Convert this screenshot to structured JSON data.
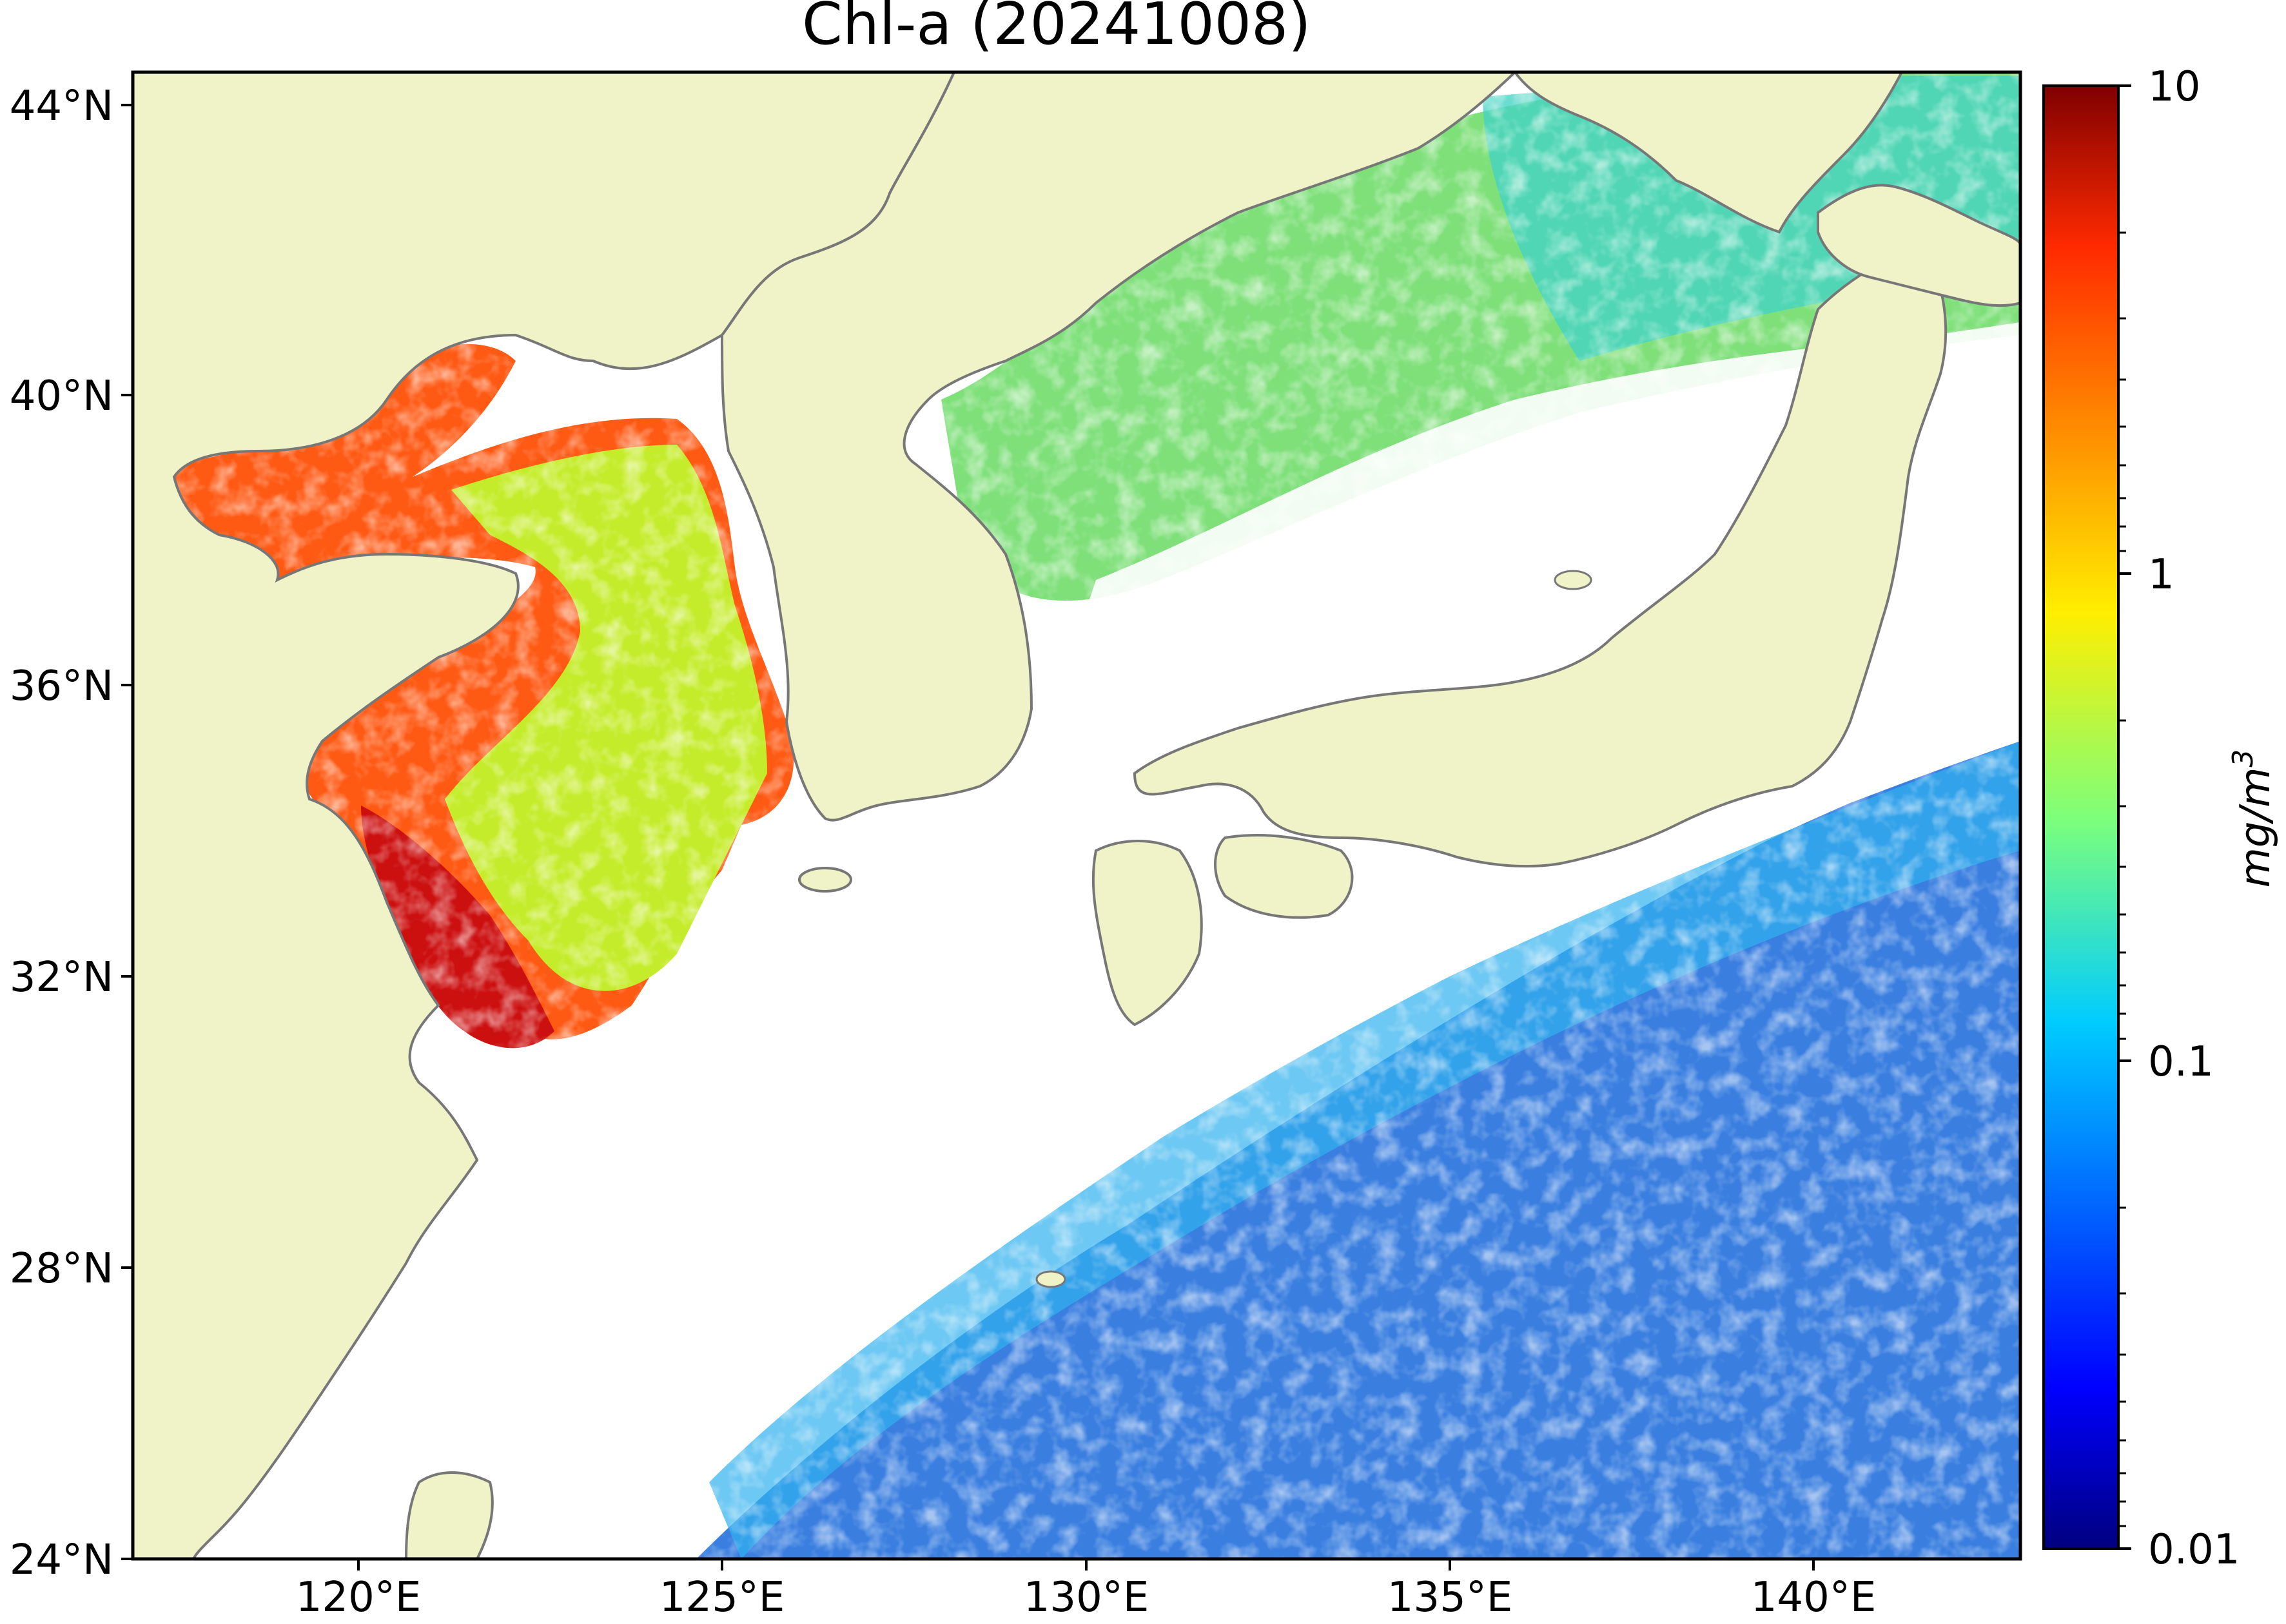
{
  "title": "Chl-a (20241008)",
  "map": {
    "type": "chlorophyll-a concentration map",
    "lon_range": [
      116.5,
      143.0
    ],
    "lat_range": [
      24.0,
      44.5
    ],
    "x_ticks": [
      "120°E",
      "125°E",
      "130°E",
      "135°E",
      "140°E"
    ],
    "y_ticks": [
      "44°N",
      "40°N",
      "36°N",
      "32°N",
      "28°N",
      "24°N"
    ],
    "colors": {
      "land": "#f0f2c8",
      "coastline": "#777777",
      "no_data": "#ffffff",
      "frame": "#000000"
    }
  },
  "colorbar": {
    "colormap": "jet",
    "scale": "log",
    "range": [
      0.01,
      10
    ],
    "tick_labels": [
      "10",
      "1",
      "0.1",
      "0.01"
    ],
    "unit_label": "mg/m",
    "unit_exponent": "3"
  }
}
